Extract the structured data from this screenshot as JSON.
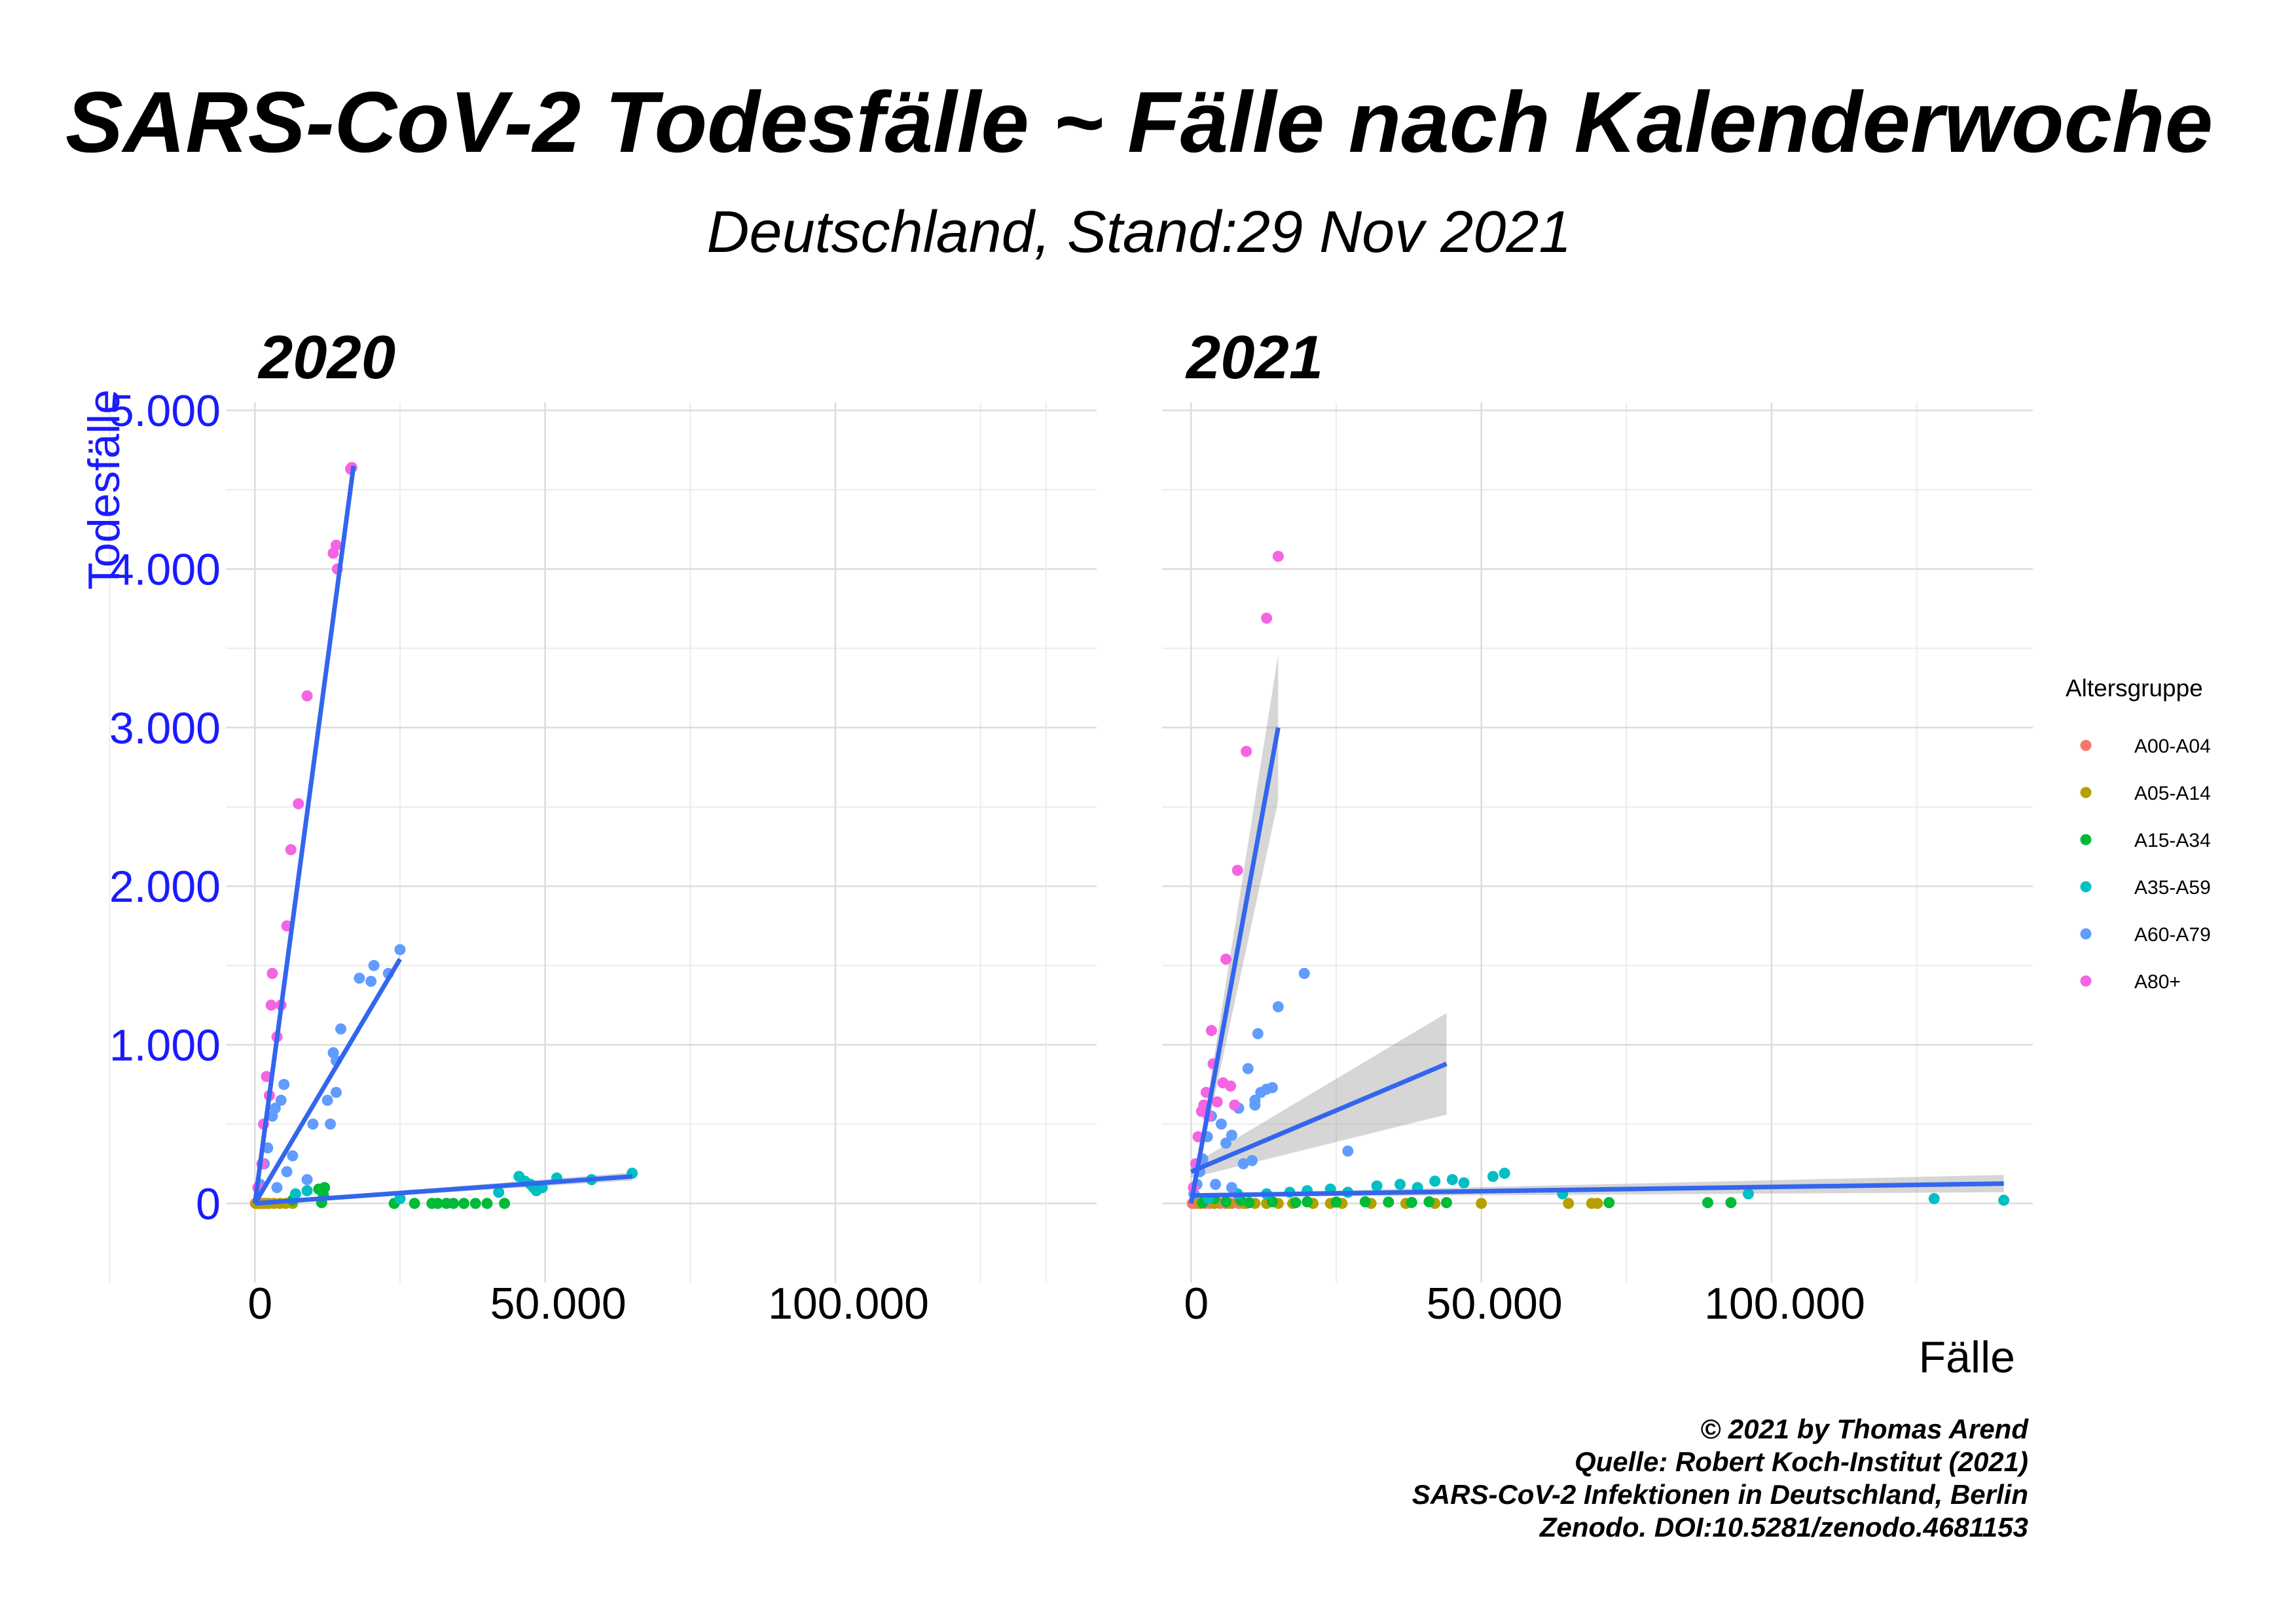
{
  "header": {
    "title": "SARS-CoV-2 Todesfälle ~ Fälle nach Kalenderwoche",
    "subtitle": "Deutschland, Stand:29 Nov 2021"
  },
  "caption": {
    "lines": [
      "© 2021 by Thomas Arend",
      "Quelle: Robert Koch-Institut (2021)",
      "SARS-CoV-2 Infektionen in Deutschland, Berlin",
      "Zenodo. DOI:10.5281/zenodo.4681153"
    ]
  },
  "chart_data": {
    "type": "scatter",
    "xlabel": "Fälle",
    "ylabel": "Todesfälle",
    "xlim": [
      -5000,
      145000
    ],
    "ylim": [
      -500,
      5050
    ],
    "x_ticks": [
      0,
      50000,
      100000
    ],
    "x_tick_labels": [
      "0",
      "50.000",
      "100.000"
    ],
    "y_ticks": [
      0,
      1000,
      2000,
      3000,
      4000,
      5000
    ],
    "y_tick_labels": [
      "0",
      "1.000",
      "2.000",
      "3.000",
      "4.000",
      "5.000"
    ],
    "grid": true,
    "legend": {
      "title": "Altersgruppe",
      "position": "right",
      "entries": [
        {
          "name": "A00-A04",
          "color": "#F8766D"
        },
        {
          "name": "A05-A14",
          "color": "#B79F00"
        },
        {
          "name": "A15-A34",
          "color": "#00BA38"
        },
        {
          "name": "A35-A59",
          "color": "#00BFC4"
        },
        {
          "name": "A60-A79",
          "color": "#619CFF"
        },
        {
          "name": "A80+",
          "color": "#F564E3"
        }
      ]
    },
    "panels": [
      {
        "facet": "2020",
        "series": [
          {
            "name": "A00-A04",
            "points": [
              [
                100,
                0
              ],
              [
                300,
                0
              ],
              [
                600,
                0
              ],
              [
                900,
                0
              ],
              [
                1300,
                0
              ],
              [
                1700,
                0
              ],
              [
                2100,
                0
              ]
            ]
          },
          {
            "name": "A05-A14",
            "points": [
              [
                200,
                0
              ],
              [
                700,
                0
              ],
              [
                1500,
                0
              ],
              [
                2400,
                0
              ],
              [
                3300,
                0
              ],
              [
                4300,
                0
              ],
              [
                5300,
                0
              ],
              [
                6500,
                0
              ]
            ]
          },
          {
            "name": "A15-A34",
            "points": [
              [
                24000,
                0
              ],
              [
                27500,
                0
              ],
              [
                30500,
                0
              ],
              [
                31500,
                0
              ],
              [
                33000,
                0
              ],
              [
                34200,
                0
              ],
              [
                36000,
                0
              ],
              [
                38000,
                0
              ],
              [
                40000,
                0
              ],
              [
                43000,
                0
              ],
              [
                6500,
                20
              ],
              [
                11500,
                5
              ],
              [
                11800,
                55
              ],
              [
                11000,
                90
              ],
              [
                12000,
                100
              ]
            ]
          },
          {
            "name": "A35-A59",
            "points": [
              [
                45500,
                170
              ],
              [
                46500,
                140
              ],
              [
                47500,
                120
              ],
              [
                48000,
                100
              ],
              [
                48500,
                80
              ],
              [
                49500,
                100
              ],
              [
                52000,
                160
              ],
              [
                58000,
                150
              ],
              [
                65000,
                190
              ],
              [
                42000,
                70
              ],
              [
                25000,
                30
              ],
              [
                7000,
                60
              ],
              [
                9000,
                80
              ]
            ]
          },
          {
            "name": "A60-A79",
            "points": [
              [
                900,
                120
              ],
              [
                1600,
                250
              ],
              [
                2200,
                350
              ],
              [
                3000,
                550
              ],
              [
                3500,
                600
              ],
              [
                4500,
                650
              ],
              [
                5000,
                750
              ],
              [
                6500,
                300
              ],
              [
                9000,
                150
              ],
              [
                10000,
                500
              ],
              [
                12500,
                650
              ],
              [
                13000,
                500
              ],
              [
                13500,
                950
              ],
              [
                14000,
                700
              ],
              [
                14800,
                1100
              ],
              [
                14000,
                900
              ],
              [
                18000,
                1420
              ],
              [
                20000,
                1400
              ],
              [
                20500,
                1500
              ],
              [
                23000,
                1450
              ],
              [
                25000,
                1600
              ],
              [
                3800,
                100
              ],
              [
                5500,
                200
              ]
            ]
          },
          {
            "name": "A80+",
            "points": [
              [
                500,
                100
              ],
              [
                1200,
                250
              ],
              [
                1500,
                500
              ],
              [
                2000,
                800
              ],
              [
                2500,
                680
              ],
              [
                2800,
                1250
              ],
              [
                3000,
                1450
              ],
              [
                3800,
                1050
              ],
              [
                4500,
                1250
              ],
              [
                5500,
                1750
              ],
              [
                6200,
                2230
              ],
              [
                7500,
                2520
              ],
              [
                9000,
                3200
              ],
              [
                13500,
                4100
              ],
              [
                14000,
                4150
              ],
              [
                14200,
                4000
              ],
              [
                16500,
                4630
              ],
              [
                16700,
                4640
              ]
            ]
          }
        ],
        "fits": [
          {
            "name": "A80+",
            "x": [
              0,
              17000
            ],
            "y": [
              0,
              4650
            ]
          },
          {
            "name": "A60-A79",
            "x": [
              0,
              25000
            ],
            "y": [
              0,
              1540
            ]
          },
          {
            "name": "A35-A59",
            "x": [
              0,
              65000
            ],
            "y": [
              0,
              170
            ]
          }
        ]
      },
      {
        "facet": "2021",
        "series": [
          {
            "name": "A00-A04",
            "points": [
              [
                200,
                0
              ],
              [
                600,
                0
              ],
              [
                1100,
                0
              ],
              [
                1700,
                0
              ],
              [
                2400,
                0
              ],
              [
                3200,
                0
              ],
              [
                4000,
                0
              ],
              [
                5000,
                0
              ],
              [
                6000,
                0
              ],
              [
                7000,
                0
              ],
              [
                8200,
                0
              ],
              [
                9500,
                0
              ]
            ]
          },
          {
            "name": "A05-A14",
            "points": [
              [
                1500,
                0
              ],
              [
                4000,
                0
              ],
              [
                6500,
                0
              ],
              [
                9000,
                0
              ],
              [
                11000,
                0
              ],
              [
                13000,
                0
              ],
              [
                15000,
                0
              ],
              [
                17500,
                0
              ],
              [
                21000,
                0
              ],
              [
                24000,
                0
              ],
              [
                26000,
                0
              ],
              [
                31000,
                0
              ],
              [
                37000,
                0
              ],
              [
                42000,
                0
              ],
              [
                50000,
                0
              ],
              [
                65000,
                0
              ],
              [
                69000,
                0
              ],
              [
                70000,
                0
              ]
            ]
          },
          {
            "name": "A15-A34",
            "points": [
              [
                2000,
                5
              ],
              [
                6000,
                10
              ],
              [
                10000,
                5
              ],
              [
                14000,
                10
              ],
              [
                18000,
                5
              ],
              [
                20000,
                10
              ],
              [
                25000,
                8
              ],
              [
                30000,
                10
              ],
              [
                34000,
                8
              ],
              [
                38000,
                6
              ],
              [
                41000,
                10
              ],
              [
                44000,
                5
              ],
              [
                72000,
                5
              ],
              [
                89000,
                5
              ],
              [
                93000,
                5
              ],
              [
                4000,
                30
              ],
              [
                8500,
                20
              ]
            ]
          },
          {
            "name": "A35-A59",
            "points": [
              [
                3000,
                30
              ],
              [
                8000,
                60
              ],
              [
                13000,
                60
              ],
              [
                17000,
                70
              ],
              [
                20000,
                80
              ],
              [
                24000,
                90
              ],
              [
                27000,
                70
              ],
              [
                32000,
                110
              ],
              [
                36000,
                120
              ],
              [
                39000,
                100
              ],
              [
                42000,
                140
              ],
              [
                45000,
                150
              ],
              [
                47000,
                130
              ],
              [
                52000,
                170
              ],
              [
                54000,
                190
              ],
              [
                64000,
                60
              ],
              [
                96000,
                60
              ],
              [
                128000,
                30
              ],
              [
                140000,
                20
              ]
            ]
          },
          {
            "name": "A60-A79",
            "points": [
              [
                500,
                60
              ],
              [
                1000,
                120
              ],
              [
                1500,
                200
              ],
              [
                2000,
                280
              ],
              [
                2800,
                420
              ],
              [
                3500,
                550
              ],
              [
                4200,
                120
              ],
              [
                5200,
                500
              ],
              [
                6000,
                380
              ],
              [
                7000,
                430
              ],
              [
                8200,
                600
              ],
              [
                9800,
                850
              ],
              [
                10500,
                270
              ],
              [
                11000,
                620
              ],
              [
                11500,
                1070
              ],
              [
                12000,
                700
              ],
              [
                13000,
                720
              ],
              [
                14000,
                730
              ],
              [
                15000,
                1240
              ],
              [
                19500,
                1450
              ],
              [
                27000,
                330
              ],
              [
                11000,
                650
              ],
              [
                7000,
                100
              ],
              [
                9000,
                250
              ]
            ]
          },
          {
            "name": "A80+",
            "points": [
              [
                400,
                100
              ],
              [
                800,
                250
              ],
              [
                1200,
                420
              ],
              [
                1800,
                580
              ],
              [
                2200,
                620
              ],
              [
                2600,
                700
              ],
              [
                3000,
                550
              ],
              [
                3500,
                1090
              ],
              [
                3800,
                880
              ],
              [
                4500,
                640
              ],
              [
                5500,
                760
              ],
              [
                6800,
                740
              ],
              [
                7500,
                620
              ],
              [
                6000,
                1540
              ],
              [
                8000,
                2100
              ],
              [
                9500,
                2850
              ],
              [
                13000,
                3690
              ],
              [
                15000,
                4080
              ]
            ]
          }
        ],
        "fits": [
          {
            "name": "A80+",
            "x": [
              0,
              15000
            ],
            "y": [
              0,
              3000
            ],
            "band_halfwidth": [
              10,
              460
            ]
          },
          {
            "name": "A60-A79",
            "x": [
              0,
              44000
            ],
            "y": [
              200,
              880
            ],
            "band_halfwidth": [
              40,
              320
            ]
          },
          {
            "name": "A35-A59",
            "x": [
              0,
              140000
            ],
            "y": [
              50,
              125
            ],
            "band_halfwidth": [
              10,
              55
            ]
          }
        ]
      }
    ]
  }
}
